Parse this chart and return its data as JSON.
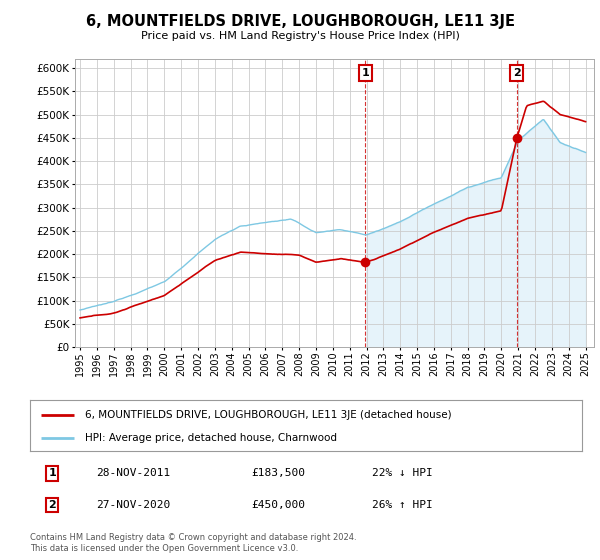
{
  "title": "6, MOUNTFIELDS DRIVE, LOUGHBOROUGH, LE11 3JE",
  "subtitle": "Price paid vs. HM Land Registry's House Price Index (HPI)",
  "ylim": [
    0,
    620000
  ],
  "yticks": [
    0,
    50000,
    100000,
    150000,
    200000,
    250000,
    300000,
    350000,
    400000,
    450000,
    500000,
    550000,
    600000
  ],
  "xlim_start": 1994.7,
  "xlim_end": 2025.5,
  "xtick_years": [
    1995,
    1996,
    1997,
    1998,
    1999,
    2000,
    2001,
    2002,
    2003,
    2004,
    2005,
    2006,
    2007,
    2008,
    2009,
    2010,
    2011,
    2012,
    2013,
    2014,
    2015,
    2016,
    2017,
    2018,
    2019,
    2020,
    2021,
    2022,
    2023,
    2024,
    2025
  ],
  "hpi_color": "#7ec8e3",
  "hpi_fill_color": "#d6ecf7",
  "price_color": "#cc0000",
  "transaction1_x": 2011.92,
  "transaction1_y": 183500,
  "transaction2_x": 2020.92,
  "transaction2_y": 450000,
  "legend_line1": "6, MOUNTFIELDS DRIVE, LOUGHBOROUGH, LE11 3JE (detached house)",
  "legend_line2": "HPI: Average price, detached house, Charnwood",
  "note1_label": "1",
  "note1_date": "28-NOV-2011",
  "note1_price": "£183,500",
  "note1_hpi": "22% ↓ HPI",
  "note2_label": "2",
  "note2_date": "27-NOV-2020",
  "note2_price": "£450,000",
  "note2_hpi": "26% ↑ HPI",
  "footer": "Contains HM Land Registry data © Crown copyright and database right 2024.\nThis data is licensed under the Open Government Licence v3.0.",
  "bg_color": "#ffffff",
  "grid_color": "#cccccc"
}
